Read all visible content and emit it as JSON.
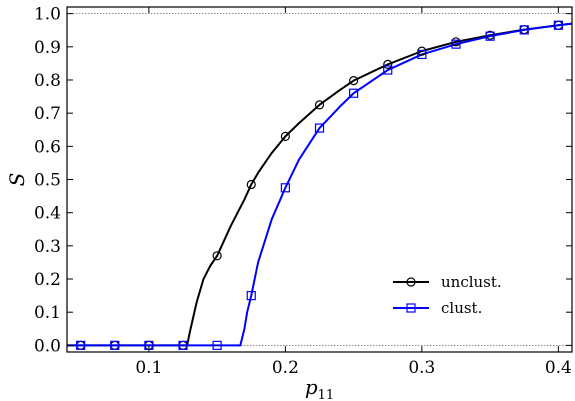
{
  "chart_data": {
    "type": "line",
    "xlabel_main": "p",
    "xlabel_sub": "11",
    "ylabel": "S",
    "xlim": [
      0.04,
      0.41
    ],
    "ylim": [
      -0.02,
      1.02
    ],
    "xticks": [
      0.1,
      0.2,
      0.3,
      0.4
    ],
    "xtick_labels": [
      "0.1",
      "0.2",
      "0.3",
      "0.4"
    ],
    "yticks": [
      0.0,
      0.1,
      0.2,
      0.3,
      0.4,
      0.5,
      0.6,
      0.7,
      0.8,
      0.9,
      1.0
    ],
    "ytick_labels": [
      "0.0",
      "0.1",
      "0.2",
      "0.3",
      "0.4",
      "0.5",
      "0.6",
      "0.7",
      "0.8",
      "0.9",
      "1.0"
    ],
    "reference_lines": [
      0.0,
      1.0
    ],
    "legend_position": "lower-right",
    "series": [
      {
        "name": "unclust.",
        "color": "#000000",
        "marker": "circle",
        "line_x": [
          0.04,
          0.1,
          0.128,
          0.13,
          0.135,
          0.14,
          0.145,
          0.15,
          0.16,
          0.17,
          0.175,
          0.18,
          0.19,
          0.2,
          0.21,
          0.225,
          0.24,
          0.25,
          0.275,
          0.3,
          0.325,
          0.35,
          0.375,
          0.4,
          0.41
        ],
        "line_y": [
          0.0,
          0.0,
          0.0,
          0.04,
          0.13,
          0.2,
          0.24,
          0.27,
          0.36,
          0.44,
          0.485,
          0.52,
          0.58,
          0.63,
          0.67,
          0.725,
          0.77,
          0.798,
          0.847,
          0.887,
          0.915,
          0.935,
          0.952,
          0.965,
          0.97
        ],
        "marker_x": [
          0.05,
          0.075,
          0.1,
          0.125,
          0.15,
          0.175,
          0.2,
          0.225,
          0.25,
          0.275,
          0.3,
          0.325,
          0.35,
          0.375,
          0.4
        ],
        "marker_y": [
          0.0,
          0.0,
          0.0,
          0.0,
          0.27,
          0.485,
          0.63,
          0.725,
          0.798,
          0.847,
          0.887,
          0.915,
          0.935,
          0.952,
          0.965
        ]
      },
      {
        "name": "clust.",
        "color": "#0000ff",
        "marker": "square",
        "line_x": [
          0.04,
          0.1,
          0.15,
          0.167,
          0.17,
          0.172,
          0.175,
          0.18,
          0.19,
          0.2,
          0.21,
          0.225,
          0.24,
          0.25,
          0.275,
          0.3,
          0.325,
          0.35,
          0.375,
          0.4,
          0.41
        ],
        "line_y": [
          0.0,
          0.0,
          0.0,
          0.0,
          0.05,
          0.1,
          0.15,
          0.25,
          0.38,
          0.475,
          0.56,
          0.655,
          0.72,
          0.76,
          0.83,
          0.877,
          0.908,
          0.932,
          0.951,
          0.965,
          0.97
        ],
        "marker_x": [
          0.05,
          0.075,
          0.1,
          0.125,
          0.15,
          0.175,
          0.2,
          0.225,
          0.25,
          0.275,
          0.3,
          0.325,
          0.35,
          0.375,
          0.4
        ],
        "marker_y": [
          0.0,
          0.0,
          0.0,
          0.0,
          0.0,
          0.15,
          0.475,
          0.655,
          0.76,
          0.83,
          0.877,
          0.908,
          0.932,
          0.951,
          0.965
        ]
      }
    ]
  }
}
